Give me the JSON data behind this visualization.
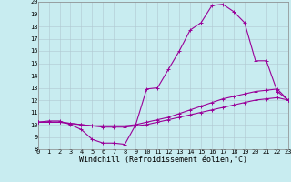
{
  "xlabel": "Windchill (Refroidissement éolien,°C)",
  "xlim": [
    0,
    23
  ],
  "ylim": [
    8,
    20
  ],
  "xticks": [
    0,
    1,
    2,
    3,
    4,
    5,
    6,
    7,
    8,
    9,
    10,
    11,
    12,
    13,
    14,
    15,
    16,
    17,
    18,
    19,
    20,
    21,
    22,
    23
  ],
  "yticks": [
    8,
    9,
    10,
    11,
    12,
    13,
    14,
    15,
    16,
    17,
    18,
    19,
    20
  ],
  "bg_color": "#c8ecf0",
  "line_color": "#990099",
  "grid_color": "#b0c8d0",
  "line1_x": [
    0,
    1,
    2,
    3,
    4,
    5,
    6,
    7,
    8,
    9,
    10,
    11,
    12,
    13,
    14,
    15,
    16,
    17,
    18,
    19,
    20,
    21,
    22,
    23
  ],
  "line1_y": [
    10.2,
    10.3,
    10.3,
    10.0,
    9.6,
    8.8,
    8.5,
    8.5,
    8.4,
    10.0,
    12.9,
    13.0,
    14.5,
    16.0,
    17.7,
    18.3,
    19.7,
    19.8,
    19.2,
    18.3,
    15.2,
    15.2,
    12.7,
    12.0
  ],
  "line2_x": [
    0,
    1,
    2,
    3,
    4,
    5,
    6,
    7,
    8,
    9,
    10,
    11,
    12,
    13,
    14,
    15,
    16,
    17,
    18,
    19,
    20,
    21,
    22,
    23
  ],
  "line2_y": [
    10.2,
    10.2,
    10.2,
    10.1,
    10.0,
    9.9,
    9.9,
    9.9,
    9.9,
    10.0,
    10.2,
    10.4,
    10.6,
    10.9,
    11.2,
    11.5,
    11.8,
    12.1,
    12.3,
    12.5,
    12.7,
    12.8,
    12.9,
    12.0
  ],
  "line3_x": [
    0,
    1,
    2,
    3,
    4,
    5,
    6,
    7,
    8,
    9,
    10,
    11,
    12,
    13,
    14,
    15,
    16,
    17,
    18,
    19,
    20,
    21,
    22,
    23
  ],
  "line3_y": [
    10.2,
    10.2,
    10.2,
    10.1,
    10.0,
    9.9,
    9.8,
    9.8,
    9.8,
    9.9,
    10.0,
    10.2,
    10.4,
    10.6,
    10.8,
    11.0,
    11.2,
    11.4,
    11.6,
    11.8,
    12.0,
    12.1,
    12.2,
    12.0
  ],
  "markersize": 3,
  "linewidth": 0.8,
  "tick_fontsize": 5.0,
  "xlabel_fontsize": 6.0
}
